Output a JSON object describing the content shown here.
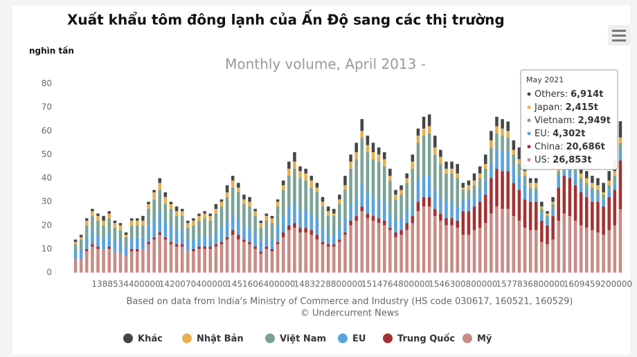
{
  "chart_data": {
    "type": "bar",
    "stacked": true,
    "title": "Xuất khẩu tôm đông lạnh của Ấn Độ sang các thị trường",
    "subtitle": "Monthly volume, April 2013 -",
    "ylabel": "nghìn tấn",
    "credits": [
      "Based on data from India's Ministry of Commerce and Industry (HS code 030617, 160521, 160529)",
      "© Undercurrent News"
    ],
    "ylim": [
      0,
      80
    ],
    "yticks": [
      0,
      10,
      20,
      30,
      40,
      50,
      60,
      70,
      80
    ],
    "grid": false,
    "legend": "bottom",
    "categories": [
      null,
      null,
      null,
      null,
      null,
      null,
      null,
      null,
      null,
      "1388534400000",
      null,
      null,
      null,
      null,
      null,
      null,
      null,
      null,
      null,
      null,
      null,
      "1420070400000",
      null,
      null,
      null,
      null,
      null,
      null,
      null,
      null,
      null,
      null,
      null,
      "1451606400000",
      null,
      null,
      null,
      null,
      null,
      null,
      null,
      null,
      null,
      null,
      null,
      "1483228800000",
      null,
      null,
      null,
      null,
      null,
      null,
      null,
      null,
      null,
      null,
      null,
      "1514764800000",
      null,
      null,
      null,
      null,
      null,
      null,
      null,
      null,
      null,
      null,
      null,
      "1546300800000",
      null,
      null,
      null,
      null,
      null,
      null,
      null,
      null,
      null,
      null,
      null,
      "1577836800000",
      null,
      null,
      null,
      null,
      null,
      null,
      null,
      null,
      null,
      null,
      null,
      "1609459200000",
      null,
      null,
      null,
      null
    ],
    "series": [
      {
        "name": "Khác",
        "color": "#464646",
        "values": [
          1,
          1,
          1,
          1,
          1,
          2,
          1,
          1,
          1,
          1,
          1,
          1,
          2,
          1,
          1,
          2,
          2,
          1,
          2,
          1,
          1,
          1,
          1,
          1,
          1,
          2,
          1,
          3,
          2,
          2,
          2,
          2,
          1,
          1,
          1,
          1,
          1,
          2,
          3,
          4,
          2,
          2,
          2,
          2,
          2,
          2,
          2,
          2,
          4,
          3,
          4,
          5,
          4,
          4,
          3,
          3,
          3,
          2,
          2,
          2,
          3,
          3,
          5,
          5,
          5,
          3,
          3,
          3,
          4,
          2,
          2,
          3,
          3,
          4,
          4,
          4,
          4,
          4,
          4,
          5,
          3,
          2,
          2,
          2,
          1,
          2,
          3,
          3,
          3,
          3,
          3,
          3,
          3,
          3,
          4,
          4,
          5,
          6.914
        ]
      },
      {
        "name": "Nhật Bản",
        "color": "#e7b04f",
        "values": [
          1,
          1,
          2,
          2,
          2,
          2,
          2,
          2,
          2,
          1,
          2,
          2,
          2,
          2,
          3,
          3,
          3,
          2,
          2,
          2,
          2,
          2,
          2,
          2,
          2,
          2,
          2,
          2,
          3,
          2,
          2,
          2,
          2,
          2,
          2,
          2,
          2,
          2,
          3,
          3,
          3,
          3,
          3,
          2,
          2,
          2,
          1,
          2,
          2,
          3,
          3,
          3,
          3,
          3,
          3,
          3,
          2,
          2,
          2,
          2,
          3,
          3,
          3,
          3,
          3,
          3,
          2,
          2,
          2,
          1,
          2,
          2,
          2,
          2,
          3,
          3,
          3,
          3,
          2,
          2,
          2,
          2,
          2,
          1,
          1,
          1,
          2,
          2,
          2,
          2,
          2,
          2,
          2,
          2,
          1,
          2,
          2,
          2.415
        ]
      },
      {
        "name": "Việt Nam",
        "color": "#7aa396",
        "values": [
          3,
          4,
          5,
          6,
          6,
          5,
          6,
          5,
          5,
          4,
          5,
          5,
          5,
          7,
          8,
          9,
          7,
          7,
          6,
          6,
          5,
          6,
          7,
          7,
          7,
          8,
          9,
          10,
          11,
          11,
          9,
          9,
          8,
          6,
          7,
          7,
          9,
          11,
          13,
          14,
          13,
          12,
          11,
          11,
          9,
          8,
          8,
          10,
          12,
          15,
          16,
          19,
          17,
          16,
          16,
          15,
          13,
          9,
          10,
          11,
          13,
          16,
          17,
          18,
          15,
          14,
          12,
          12,
          12,
          4,
          4,
          4,
          5,
          5,
          6,
          7,
          7,
          6,
          5,
          5,
          4,
          2,
          2,
          2,
          1,
          2,
          2,
          3,
          3,
          3,
          2,
          2,
          2,
          2,
          2,
          2,
          3,
          2.949
        ]
      },
      {
        "name": "EU",
        "color": "#5ba3dc",
        "values": [
          3,
          4,
          5,
          6,
          5,
          5,
          6,
          5,
          5,
          4,
          5,
          5,
          5,
          7,
          8,
          9,
          7,
          7,
          6,
          6,
          5,
          4,
          4,
          5,
          4,
          5,
          6,
          7,
          7,
          7,
          6,
          6,
          5,
          4,
          4,
          4,
          6,
          7,
          8,
          9,
          8,
          8,
          7,
          7,
          6,
          4,
          4,
          5,
          6,
          7,
          8,
          10,
          9,
          8,
          8,
          8,
          7,
          5,
          5,
          6,
          7,
          9,
          9,
          9,
          8,
          7,
          7,
          7,
          6,
          5,
          5,
          5,
          5,
          6,
          7,
          8,
          8,
          8,
          7,
          6,
          6,
          4,
          4,
          3,
          3,
          3,
          5,
          6,
          5,
          5,
          4,
          4,
          4,
          3,
          3,
          3,
          3,
          4.302
        ]
      },
      {
        "name": "Trung Quốc",
        "color": "#a33232",
        "values": [
          0,
          0,
          1,
          1,
          1,
          0,
          1,
          0,
          0,
          0,
          1,
          1,
          0,
          1,
          1,
          1,
          1,
          1,
          1,
          1,
          0,
          1,
          1,
          1,
          1,
          1,
          1,
          1,
          2,
          2,
          1,
          1,
          1,
          1,
          1,
          1,
          1,
          2,
          2,
          2,
          2,
          2,
          2,
          2,
          1,
          1,
          1,
          1,
          1,
          2,
          2,
          2,
          2,
          2,
          2,
          2,
          1,
          2,
          2,
          3,
          3,
          4,
          4,
          4,
          3,
          3,
          3,
          3,
          3,
          10,
          10,
          10,
          11,
          12,
          15,
          16,
          16,
          16,
          14,
          13,
          12,
          12,
          12,
          9,
          8,
          10,
          14,
          16,
          16,
          15,
          14,
          13,
          12,
          13,
          12,
          14,
          15,
          20.686
        ]
      },
      {
        "name": "Mỹ",
        "color": "#c98b86",
        "values": [
          6,
          6,
          9,
          11,
          10,
          10,
          10,
          9,
          8,
          7,
          9,
          9,
          10,
          12,
          14,
          16,
          14,
          12,
          11,
          11,
          9,
          9,
          10,
          10,
          10,
          11,
          12,
          14,
          16,
          14,
          13,
          12,
          10,
          8,
          10,
          9,
          12,
          15,
          18,
          19,
          17,
          17,
          16,
          14,
          12,
          11,
          11,
          13,
          16,
          20,
          22,
          26,
          23,
          22,
          21,
          20,
          18,
          15,
          16,
          18,
          21,
          26,
          28,
          28,
          24,
          22,
          20,
          20,
          19,
          16,
          16,
          18,
          19,
          21,
          25,
          28,
          27,
          27,
          24,
          22,
          19,
          18,
          18,
          13,
          12,
          14,
          22,
          25,
          24,
          22,
          20,
          19,
          18,
          17,
          16,
          18,
          20,
          26.853
        ]
      }
    ],
    "tooltip": {
      "title": "May 2021",
      "items": [
        {
          "name": "Others:",
          "value": "6,914t",
          "color": "#464646"
        },
        {
          "name": "Japan:",
          "value": "2,415t",
          "color": "#e7b04f"
        },
        {
          "name": "Vietnam:",
          "value": "2,949t",
          "color": "#7aa396"
        },
        {
          "name": "EU:",
          "value": "4,302t",
          "color": "#5ba3dc"
        },
        {
          "name": "China:",
          "value": "20,686t",
          "color": "#a33232"
        },
        {
          "name": "US:",
          "value": "26,853t",
          "color": "#c98b86"
        }
      ]
    }
  }
}
